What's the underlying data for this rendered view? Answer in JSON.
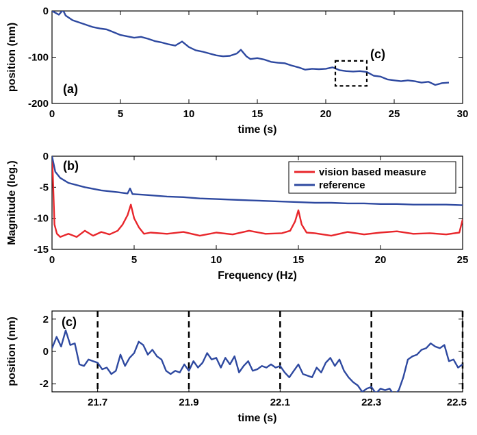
{
  "chart_data": [
    {
      "type": "line",
      "panel_label": "(a)",
      "inset_label": "(c)",
      "xlabel": "time (s)",
      "ylabel": "position (nm)",
      "xlim": [
        0,
        30
      ],
      "ylim": [
        -200,
        0
      ],
      "xticks": [
        "0",
        "5",
        "10",
        "15",
        "20",
        "25",
        "30"
      ],
      "yticks": [
        "0",
        "-100",
        "-200"
      ],
      "color": "#2e49a0",
      "zoom_box": {
        "x": [
          20.7,
          23.0
        ],
        "y": [
          -162,
          -108
        ]
      },
      "x": [
        0,
        0.5,
        0.8,
        1.0,
        1.5,
        2.0,
        2.5,
        3.0,
        3.5,
        4.0,
        4.5,
        5.0,
        5.5,
        6.0,
        6.5,
        7.0,
        7.5,
        8.0,
        8.5,
        9.0,
        9.5,
        10.0,
        10.5,
        11.0,
        11.5,
        12.0,
        12.5,
        13.0,
        13.5,
        13.8,
        14.2,
        14.5,
        15.0,
        15.5,
        16.0,
        16.5,
        17.0,
        17.5,
        18.0,
        18.5,
        19.0,
        19.5,
        20.0,
        20.5,
        21.0,
        21.5,
        22.0,
        22.5,
        23.0,
        23.5,
        24.0,
        24.5,
        25.0,
        25.5,
        26.0,
        26.5,
        27.0,
        27.5,
        28.0,
        28.5,
        29.0
      ],
      "y": [
        0,
        -8,
        2,
        -10,
        -20,
        -25,
        -30,
        -35,
        -38,
        -40,
        -46,
        -52,
        -55,
        -58,
        -56,
        -60,
        -65,
        -68,
        -72,
        -75,
        -66,
        -78,
        -85,
        -88,
        -92,
        -96,
        -98,
        -97,
        -92,
        -84,
        -98,
        -104,
        -102,
        -105,
        -110,
        -112,
        -113,
        -118,
        -122,
        -127,
        -125,
        -126,
        -125,
        -122,
        -128,
        -130,
        -131,
        -130,
        -132,
        -140,
        -142,
        -148,
        -150,
        -152,
        -150,
        -152,
        -155,
        -153,
        -160,
        -156,
        -155
      ]
    },
    {
      "type": "line",
      "panel_label": "(b)",
      "xlabel": "Frequency (Hz)",
      "ylabel": "Magnitude (log.)",
      "xlim": [
        0,
        25
      ],
      "ylim": [
        -15,
        0
      ],
      "xticks": [
        "0",
        "5",
        "10",
        "15",
        "20",
        "25"
      ],
      "yticks": [
        "0",
        "-5",
        "-10",
        "-15"
      ],
      "legend": "top-right",
      "series": [
        {
          "name": "vision based measure",
          "color": "#e8262b",
          "x": [
            0,
            0.05,
            0.15,
            0.3,
            0.5,
            1,
            1.5,
            2,
            2.5,
            3,
            3.5,
            4,
            4.3,
            4.6,
            4.8,
            5.0,
            5.3,
            5.6,
            6,
            7,
            8,
            9,
            10,
            11,
            12,
            13,
            14,
            14.5,
            14.8,
            15.0,
            15.2,
            15.5,
            16,
            17,
            18,
            19,
            20,
            21,
            22,
            23,
            24,
            24.8,
            25
          ],
          "y": [
            0,
            -3,
            -11,
            -12.5,
            -13,
            -12.5,
            -13,
            -12,
            -12.8,
            -12.2,
            -12.6,
            -12,
            -11,
            -9.5,
            -7.8,
            -10,
            -11.5,
            -12.5,
            -12.3,
            -12.5,
            -12.2,
            -12.8,
            -12.3,
            -12.6,
            -12,
            -12.5,
            -12.4,
            -12,
            -10.5,
            -8.7,
            -11,
            -12.3,
            -12.4,
            -12.8,
            -12.2,
            -12.6,
            -12.3,
            -12.1,
            -12.5,
            -12.4,
            -12.6,
            -12.3,
            -10.2
          ]
        },
        {
          "name": "reference",
          "color": "#2e49a0",
          "x": [
            0,
            0.2,
            0.5,
            1,
            2,
            3,
            4,
            4.6,
            4.75,
            4.9,
            5.5,
            6,
            7,
            8,
            9,
            10,
            11,
            12,
            13,
            14,
            15,
            16,
            17,
            18,
            19,
            20,
            21,
            22,
            23,
            24,
            25
          ],
          "y": [
            0,
            -2.5,
            -3.5,
            -4.3,
            -5,
            -5.5,
            -5.8,
            -6,
            -5.2,
            -6.1,
            -6.2,
            -6.3,
            -6.5,
            -6.6,
            -6.8,
            -6.9,
            -7,
            -7.1,
            -7.2,
            -7.3,
            -7.4,
            -7.5,
            -7.5,
            -7.6,
            -7.6,
            -7.7,
            -7.7,
            -7.8,
            -7.8,
            -7.8,
            -7.9
          ]
        }
      ]
    },
    {
      "type": "line",
      "panel_label": "(c)",
      "xlabel": "time (s)",
      "ylabel": "position (nm)",
      "xlim": [
        21.6,
        22.5
      ],
      "ylim": [
        -2.5,
        2.5
      ],
      "xticks": [
        "21.7",
        "21.9",
        "22.1",
        "22.3",
        "22.5"
      ],
      "yticks": [
        "2",
        "0",
        "-2"
      ],
      "dashed_vlines": [
        21.7,
        21.9,
        22.1,
        22.3,
        22.5
      ],
      "color": "#2e49a0",
      "x": [
        21.6,
        21.61,
        21.62,
        21.63,
        21.64,
        21.65,
        21.66,
        21.67,
        21.68,
        21.69,
        21.7,
        21.71,
        21.72,
        21.73,
        21.74,
        21.75,
        21.76,
        21.77,
        21.78,
        21.79,
        21.8,
        21.81,
        21.82,
        21.83,
        21.84,
        21.85,
        21.86,
        21.87,
        21.88,
        21.89,
        21.9,
        21.91,
        21.92,
        21.93,
        21.94,
        21.95,
        21.96,
        21.97,
        21.98,
        21.99,
        22.0,
        22.01,
        22.02,
        22.03,
        22.04,
        22.05,
        22.06,
        22.07,
        22.08,
        22.09,
        22.1,
        22.11,
        22.12,
        22.13,
        22.14,
        22.15,
        22.16,
        22.17,
        22.18,
        22.19,
        22.2,
        22.21,
        22.22,
        22.23,
        22.24,
        22.25,
        22.26,
        22.27,
        22.28,
        22.29,
        22.3,
        22.31,
        22.32,
        22.33,
        22.34,
        22.35,
        22.36,
        22.37,
        22.38,
        22.39,
        22.4,
        22.41,
        22.42,
        22.43,
        22.44,
        22.45,
        22.46,
        22.47,
        22.48,
        22.49,
        22.5
      ],
      "y": [
        0.2,
        0.9,
        0.3,
        1.3,
        0.4,
        0.5,
        -0.8,
        -0.9,
        -0.5,
        -0.6,
        -0.7,
        -1.1,
        -1.0,
        -1.4,
        -1.2,
        -0.2,
        -0.9,
        -0.4,
        -0.1,
        0.6,
        0.4,
        -0.2,
        0.1,
        -0.3,
        -0.5,
        -1.2,
        -1.4,
        -1.2,
        -1.3,
        -0.8,
        -1.2,
        -0.6,
        -1.0,
        -0.7,
        -0.1,
        -0.5,
        -0.4,
        -1.0,
        -0.4,
        -0.8,
        -0.3,
        -1.3,
        -0.9,
        -0.6,
        -1.2,
        -1.1,
        -0.9,
        -1.0,
        -0.8,
        -1.0,
        -0.9,
        -1.3,
        -1.6,
        -1.2,
        -0.8,
        -1.4,
        -1.5,
        -1.6,
        -1.0,
        -1.3,
        -0.7,
        -0.4,
        -0.9,
        -0.5,
        -1.2,
        -1.6,
        -1.9,
        -2.1,
        -2.5,
        -2.3,
        -2.2,
        -2.6,
        -2.3,
        -2.4,
        -2.3,
        -2.7,
        -2.4,
        -1.6,
        -0.5,
        -0.3,
        -0.2,
        0.1,
        0.2,
        0.5,
        0.3,
        0.2,
        0.4,
        -0.6,
        -0.5,
        -1.0,
        -0.8
      ]
    }
  ]
}
